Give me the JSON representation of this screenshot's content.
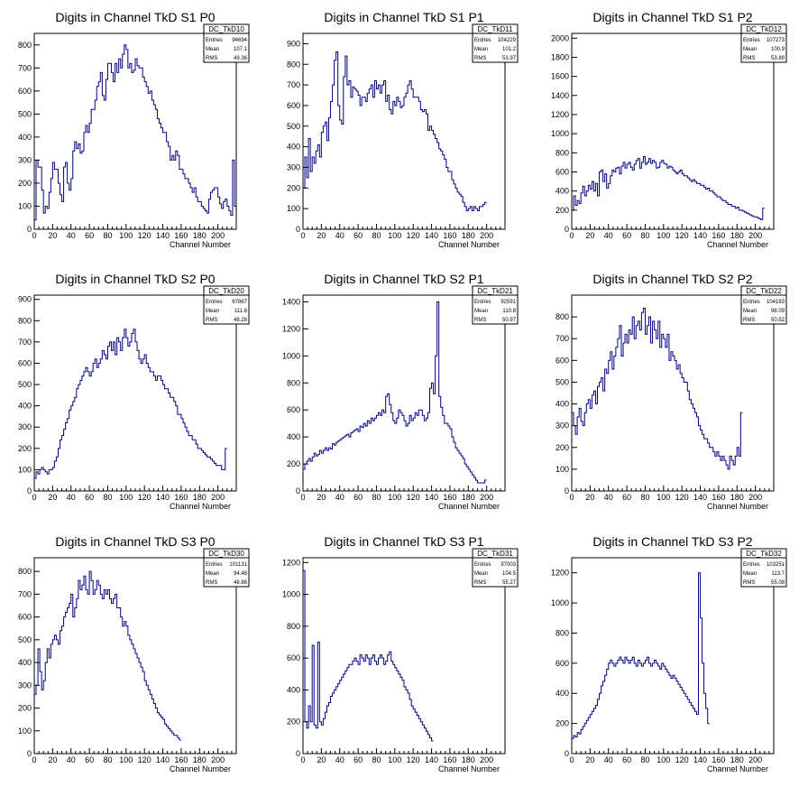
{
  "canvas": {
    "background": "#ffffff",
    "line_color": "#000080"
  },
  "chart_data": [
    {
      "type": "histogram",
      "title": "Digits in Channel TkD S1 P0",
      "xlabel": "Channel Number",
      "xlim": [
        0,
        220
      ],
      "ylim": [
        0,
        850
      ],
      "xticks": [
        0,
        20,
        40,
        60,
        80,
        100,
        120,
        140,
        160,
        180,
        200
      ],
      "yticks": [
        100,
        200,
        300,
        400,
        500,
        600,
        700,
        800
      ],
      "stats": {
        "name": "DC_TkD10",
        "rows": [
          [
            "Entries",
            "94694"
          ],
          [
            "Mean",
            "107.1"
          ],
          [
            "RMS",
            "49.36"
          ]
        ]
      },
      "bin_width": 2,
      "values": [
        40,
        300,
        270,
        270,
        170,
        70,
        100,
        90,
        160,
        220,
        290,
        260,
        260,
        200,
        150,
        120,
        270,
        290,
        200,
        170,
        220,
        340,
        380,
        350,
        370,
        330,
        340,
        420,
        450,
        420,
        460,
        520,
        520,
        560,
        620,
        640,
        680,
        580,
        560,
        650,
        720,
        720,
        680,
        640,
        720,
        680,
        740,
        700,
        760,
        800,
        780,
        700,
        720,
        680,
        690,
        740,
        710,
        700,
        700,
        660,
        640,
        620,
        590,
        600,
        560,
        540,
        520,
        480,
        460,
        440,
        420,
        420,
        380,
        360,
        300,
        320,
        300,
        340,
        320,
        260,
        260,
        240,
        220,
        220,
        200,
        180,
        160,
        180,
        140,
        120,
        120,
        100,
        90,
        80,
        70,
        130,
        160,
        170,
        180,
        180,
        140,
        110,
        90,
        120,
        130,
        100,
        80,
        60,
        300,
        100
      ]
    },
    {
      "type": "histogram",
      "title": "Digits in Channel TkD S1 P1",
      "xlabel": "Channel Number",
      "xlim": [
        0,
        220
      ],
      "ylim": [
        0,
        950
      ],
      "xticks": [
        0,
        20,
        40,
        60,
        80,
        100,
        120,
        140,
        160,
        180,
        200
      ],
      "yticks": [
        100,
        200,
        300,
        400,
        500,
        600,
        700,
        800,
        900
      ],
      "stats": {
        "name": "DC_TkD11",
        "rows": [
          [
            "Entries",
            "104229"
          ],
          [
            "Mean",
            "101.2"
          ],
          [
            "RMS",
            "53.97"
          ]
        ]
      },
      "bin_width": 2,
      "values": [
        200,
        350,
        250,
        440,
        280,
        350,
        320,
        380,
        410,
        350,
        470,
        500,
        520,
        430,
        540,
        620,
        700,
        820,
        860,
        600,
        530,
        510,
        740,
        840,
        700,
        720,
        640,
        690,
        680,
        670,
        650,
        600,
        640,
        640,
        620,
        660,
        680,
        700,
        640,
        720,
        680,
        700,
        660,
        700,
        720,
        620,
        650,
        580,
        560,
        620,
        600,
        640,
        620,
        590,
        600,
        640,
        660,
        700,
        720,
        680,
        640,
        640,
        640,
        620,
        580,
        570,
        580,
        560,
        480,
        500,
        480,
        460,
        440,
        420,
        390,
        380,
        360,
        340,
        300,
        280,
        280,
        240,
        220,
        200,
        180,
        170,
        160,
        130,
        110,
        90,
        100,
        110,
        90,
        110,
        100,
        90,
        110,
        110,
        120,
        130
      ]
    },
    {
      "type": "histogram",
      "title": "Digits in Channel TkD S1 P2",
      "xlabel": "Channel Number",
      "xlim": [
        0,
        220
      ],
      "ylim": [
        0,
        2050
      ],
      "xticks": [
        0,
        20,
        40,
        60,
        80,
        100,
        120,
        140,
        160,
        180,
        200
      ],
      "yticks": [
        200,
        400,
        600,
        800,
        1000,
        1200,
        1400,
        1600,
        1800,
        2000
      ],
      "stats": {
        "name": "DC_TkD12",
        "rows": [
          [
            "Entries",
            "107273"
          ],
          [
            "Mean",
            "100.9"
          ],
          [
            "RMS",
            "53.89"
          ]
        ]
      },
      "bin_width": 2,
      "values": [
        200,
        350,
        250,
        300,
        270,
        380,
        450,
        350,
        400,
        460,
        420,
        500,
        400,
        480,
        350,
        600,
        620,
        500,
        580,
        430,
        480,
        560,
        620,
        600,
        640,
        650,
        580,
        660,
        700,
        640,
        680,
        700,
        650,
        620,
        680,
        720,
        740,
        640,
        700,
        760,
        680,
        700,
        740,
        690,
        720,
        700,
        640,
        650,
        700,
        720,
        690,
        680,
        640,
        660,
        650,
        620,
        600,
        580,
        600,
        620,
        580,
        560,
        560,
        540,
        520,
        500,
        520,
        500,
        480,
        480,
        460,
        460,
        440,
        420,
        430,
        400,
        400,
        380,
        360,
        340,
        340,
        320,
        300,
        300,
        280,
        260,
        260,
        240,
        240,
        220,
        230,
        200,
        200,
        190,
        180,
        170,
        160,
        150,
        140,
        130,
        130,
        120,
        110,
        100,
        220
      ]
    },
    {
      "type": "histogram",
      "title": "Digits in Channel TkD S2 P0",
      "xlabel": "Channel Number",
      "xlim": [
        0,
        220
      ],
      "ylim": [
        0,
        920
      ],
      "xticks": [
        0,
        20,
        40,
        60,
        80,
        100,
        120,
        140,
        160,
        180,
        200
      ],
      "yticks": [
        100,
        200,
        300,
        400,
        500,
        600,
        700,
        800,
        900
      ],
      "stats": {
        "name": "DC_TkD20",
        "rows": [
          [
            "Entries",
            "67867"
          ],
          [
            "Mean",
            "111.8"
          ],
          [
            "RMS",
            "48.28"
          ]
        ]
      },
      "bin_width": 2,
      "values": [
        60,
        90,
        80,
        100,
        110,
        100,
        90,
        80,
        100,
        100,
        110,
        140,
        160,
        200,
        240,
        260,
        290,
        320,
        340,
        380,
        400,
        420,
        440,
        480,
        500,
        520,
        540,
        560,
        580,
        560,
        540,
        560,
        600,
        620,
        580,
        600,
        620,
        660,
        640,
        620,
        680,
        700,
        660,
        700,
        640,
        720,
        700,
        660,
        720,
        760,
        720,
        680,
        700,
        740,
        760,
        700,
        660,
        620,
        600,
        620,
        640,
        600,
        580,
        560,
        560,
        540,
        520,
        540,
        540,
        520,
        500,
        480,
        480,
        460,
        440,
        440,
        420,
        400,
        360,
        360,
        340,
        320,
        300,
        280,
        260,
        260,
        240,
        240,
        220,
        200,
        200,
        190,
        180,
        170,
        160,
        160,
        150,
        140,
        130,
        120,
        120,
        120,
        100,
        100,
        200
      ]
    },
    {
      "type": "histogram",
      "title": "Digits in Channel TkD S2 P1",
      "xlabel": "Channel Number",
      "xlim": [
        0,
        220
      ],
      "ylim": [
        0,
        1450
      ],
      "xticks": [
        0,
        20,
        40,
        60,
        80,
        100,
        120,
        140,
        160,
        180,
        200
      ],
      "yticks": [
        200,
        400,
        600,
        800,
        1000,
        1200,
        1400
      ],
      "stats": {
        "name": "DC_TkD21",
        "rows": [
          [
            "Entries",
            "92591"
          ],
          [
            "Mean",
            "110.8"
          ],
          [
            "RMS",
            "50.97"
          ]
        ]
      },
      "bin_width": 2,
      "values": [
        160,
        200,
        220,
        240,
        220,
        250,
        280,
        260,
        270,
        300,
        280,
        300,
        320,
        300,
        320,
        310,
        350,
        340,
        360,
        370,
        380,
        390,
        400,
        410,
        420,
        400,
        430,
        440,
        450,
        460,
        440,
        480,
        470,
        500,
        480,
        520,
        500,
        540,
        520,
        540,
        560,
        580,
        560,
        600,
        580,
        700,
        720,
        640,
        580,
        520,
        500,
        540,
        600,
        580,
        560,
        520,
        480,
        500,
        560,
        520,
        540,
        580,
        560,
        600,
        600,
        560,
        520,
        540,
        580,
        760,
        800,
        720,
        1000,
        1400,
        700,
        620,
        560,
        500,
        500,
        480,
        460,
        400,
        360,
        320,
        300,
        280,
        260,
        240,
        200,
        180,
        160,
        140,
        120,
        100,
        80,
        60,
        60,
        60,
        60,
        80
      ]
    },
    {
      "type": "histogram",
      "title": "Digits in Channel TkD S2 P2",
      "xlabel": "Channel Number",
      "xlim": [
        0,
        220
      ],
      "ylim": [
        0,
        900
      ],
      "xticks": [
        0,
        20,
        40,
        60,
        80,
        100,
        120,
        140,
        160,
        180,
        200
      ],
      "yticks": [
        100,
        200,
        300,
        400,
        500,
        600,
        700,
        800
      ],
      "stats": {
        "name": "DC_TkD22",
        "rows": [
          [
            "Entries",
            "104183"
          ],
          [
            "Mean",
            "98.09"
          ],
          [
            "RMS",
            "50.52"
          ]
        ]
      },
      "bin_width": 2,
      "values": [
        360,
        300,
        260,
        340,
        380,
        320,
        300,
        360,
        400,
        420,
        380,
        440,
        460,
        400,
        480,
        500,
        520,
        460,
        560,
        540,
        600,
        640,
        560,
        620,
        660,
        700,
        760,
        620,
        680,
        720,
        680,
        740,
        720,
        800,
        700,
        760,
        780,
        740,
        820,
        840,
        720,
        760,
        800,
        680,
        780,
        740,
        700,
        780,
        660,
        720,
        700,
        660,
        720,
        600,
        640,
        620,
        600,
        560,
        580,
        540,
        520,
        500,
        500,
        460,
        420,
        400,
        380,
        360,
        340,
        300,
        280,
        260,
        240,
        240,
        220,
        200,
        200,
        180,
        160,
        180,
        160,
        140,
        160,
        140,
        120,
        100,
        160,
        140,
        120,
        160,
        200,
        160,
        360
      ]
    },
    {
      "type": "histogram",
      "title": "Digits in Channel TkD S3 P0",
      "xlabel": "Channel Number",
      "xlim": [
        0,
        220
      ],
      "ylim": [
        0,
        860
      ],
      "xticks": [
        0,
        20,
        40,
        60,
        80,
        100,
        120,
        140,
        160,
        180,
        200
      ],
      "yticks": [
        100,
        200,
        300,
        400,
        500,
        600,
        700,
        800
      ],
      "stats": {
        "name": "DC_TkD30",
        "rows": [
          [
            "Entries",
            "101131"
          ],
          [
            "Mean",
            "94.48"
          ],
          [
            "RMS",
            "48.86"
          ]
        ]
      },
      "bin_width": 2,
      "values": [
        260,
        300,
        460,
        360,
        280,
        320,
        400,
        460,
        420,
        480,
        500,
        520,
        500,
        480,
        540,
        560,
        600,
        620,
        640,
        660,
        700,
        600,
        640,
        680,
        760,
        720,
        740,
        780,
        720,
        700,
        800,
        760,
        700,
        720,
        760,
        740,
        700,
        680,
        720,
        700,
        720,
        680,
        660,
        680,
        700,
        640,
        640,
        600,
        560,
        580,
        560,
        520,
        500,
        480,
        460,
        440,
        420,
        400,
        380,
        360,
        320,
        300,
        280,
        260,
        240,
        220,
        200,
        180,
        170,
        160,
        150,
        130,
        120,
        110,
        100,
        90,
        80,
        80,
        70,
        60
      ]
    },
    {
      "type": "histogram",
      "title": "Digits in Channel TkD S3 P1",
      "xlabel": "Channel Number",
      "xlim": [
        0,
        220
      ],
      "ylim": [
        0,
        1230
      ],
      "xticks": [
        0,
        20,
        40,
        60,
        80,
        100,
        120,
        140,
        160,
        180,
        200
      ],
      "yticks": [
        200,
        400,
        600,
        800,
        1000,
        1200
      ],
      "stats": {
        "name": "DC_TkD31",
        "rows": [
          [
            "Entries",
            "97003"
          ],
          [
            "Mean",
            "104.5"
          ],
          [
            "RMS",
            "55.27"
          ]
        ]
      },
      "bin_width": 2,
      "values": [
        1150,
        200,
        160,
        300,
        200,
        680,
        180,
        160,
        700,
        200,
        180,
        220,
        260,
        300,
        320,
        360,
        380,
        400,
        420,
        440,
        460,
        480,
        500,
        520,
        540,
        560,
        560,
        580,
        600,
        580,
        560,
        620,
        600,
        580,
        620,
        600,
        560,
        600,
        620,
        580,
        560,
        600,
        620,
        600,
        560,
        580,
        620,
        640,
        580,
        560,
        540,
        520,
        500,
        480,
        460,
        420,
        400,
        380,
        340,
        300,
        280,
        260,
        240,
        220,
        200,
        180,
        160,
        140,
        120,
        100,
        80
      ]
    },
    {
      "type": "histogram",
      "title": "Digits in Channel TkD S3 P2",
      "xlabel": "Channel Number",
      "xlim": [
        0,
        220
      ],
      "ylim": [
        0,
        1300
      ],
      "xticks": [
        0,
        20,
        40,
        60,
        80,
        100,
        120,
        140,
        160,
        180,
        200
      ],
      "yticks": [
        200,
        400,
        600,
        800,
        1000,
        1200
      ],
      "stats": {
        "name": "DC_TkD32",
        "rows": [
          [
            "Entries",
            "103251"
          ],
          [
            "Mean",
            "113.7"
          ],
          [
            "RMS",
            "55.08"
          ]
        ]
      },
      "bin_width": 2,
      "values": [
        100,
        120,
        110,
        140,
        130,
        160,
        180,
        200,
        220,
        240,
        260,
        280,
        300,
        320,
        360,
        400,
        450,
        480,
        520,
        560,
        600,
        620,
        600,
        580,
        600,
        620,
        640,
        620,
        600,
        640,
        620,
        600,
        620,
        640,
        600,
        580,
        620,
        600,
        580,
        600,
        620,
        640,
        600,
        580,
        600,
        620,
        600,
        580,
        560,
        600,
        580,
        560,
        540,
        520,
        500,
        520,
        500,
        480,
        460,
        440,
        420,
        400,
        380,
        360,
        340,
        320,
        300,
        280,
        260,
        1200,
        900,
        600,
        400,
        300,
        200
      ]
    }
  ]
}
